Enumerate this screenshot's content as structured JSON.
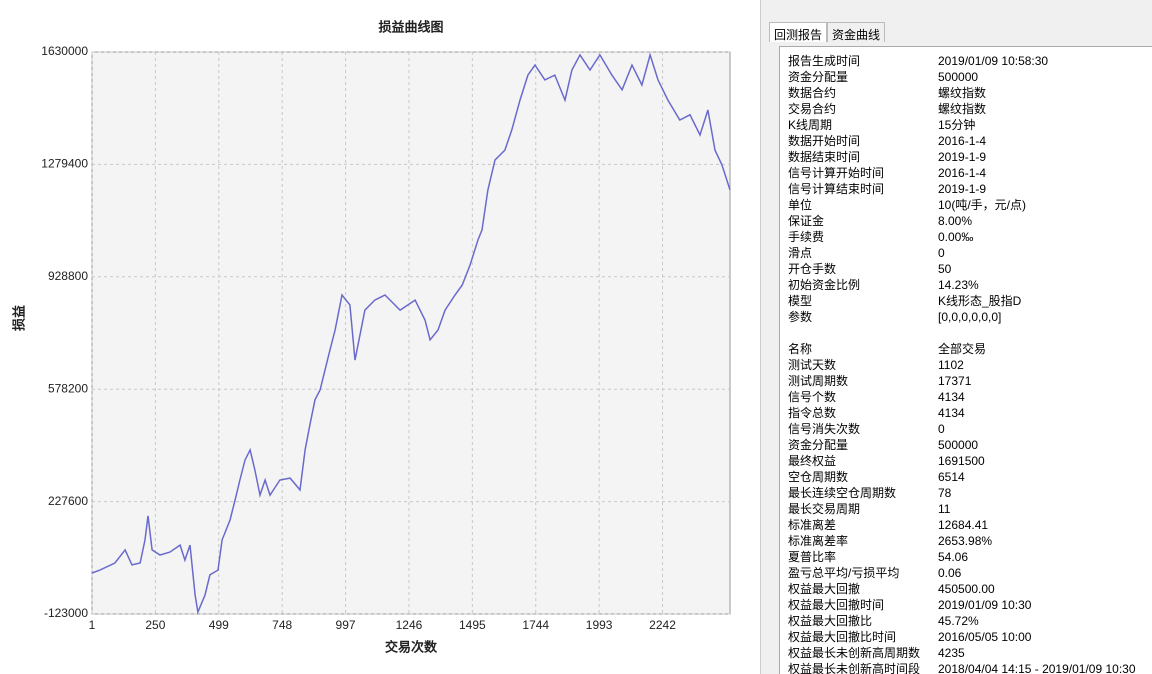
{
  "chart_data": {
    "type": "line",
    "title": "损益曲线图",
    "x_label": "交易次数",
    "y_label": "损益",
    "x": [
      1,
      32,
      91,
      131,
      158,
      190,
      209,
      221,
      237,
      268,
      307,
      347,
      366,
      386,
      406,
      417,
      445,
      464,
      496,
      512,
      543,
      563,
      582,
      602,
      622,
      641,
      661,
      681,
      700,
      739,
      779,
      818,
      838,
      857,
      877,
      897,
      936,
      956,
      983,
      1014,
      1034,
      1073,
      1112,
      1152,
      1211,
      1270,
      1309,
      1329,
      1360,
      1388,
      1427,
      1455,
      1486,
      1517,
      1533,
      1556,
      1584,
      1623,
      1650,
      1682,
      1713,
      1741,
      1780,
      1819,
      1859,
      1886,
      1918,
      1957,
      1996,
      2043,
      2083,
      2122,
      2161,
      2193,
      2224,
      2263,
      2310,
      2350,
      2389,
      2420,
      2448,
      2475,
      2507
    ],
    "series": [
      {
        "color": "#6a6acd",
        "values": [
          5000,
          14000,
          36000,
          77000,
          30000,
          36000,
          108000,
          183000,
          77000,
          61000,
          70000,
          92000,
          45000,
          92000,
          -64000,
          -117000,
          -64000,
          -1000,
          14000,
          108000,
          170000,
          233000,
          295000,
          357000,
          389000,
          326000,
          248000,
          295000,
          248000,
          295000,
          301000,
          264000,
          389000,
          467000,
          545000,
          576000,
          701000,
          763000,
          872000,
          841000,
          669000,
          825000,
          856000,
          872000,
          825000,
          856000,
          794000,
          732000,
          763000,
          825000,
          872000,
          903000,
          966000,
          1044000,
          1075000,
          1200000,
          1293000,
          1324000,
          1387000,
          1480000,
          1558000,
          1589000,
          1543000,
          1558000,
          1480000,
          1574000,
          1621000,
          1574000,
          1621000,
          1558000,
          1512000,
          1589000,
          1527000,
          1621000,
          1543000,
          1480000,
          1418000,
          1434000,
          1371000,
          1449000,
          1324000,
          1278000,
          1200000
        ]
      }
    ],
    "xlim": [
      1,
      2507
    ],
    "xticks": [
      1,
      250,
      499,
      748,
      997,
      1246,
      1495,
      1744,
      1993,
      2242
    ],
    "ylim": [
      -123000,
      1630000
    ],
    "yticks": [
      -123000,
      227600,
      578200,
      928800,
      1279400,
      1630000
    ],
    "grid": true
  },
  "tabs": [
    "回测报告",
    "资金曲线"
  ],
  "report": {
    "sections": [
      {
        "rows": [
          [
            "报告生成时间",
            "2019/01/09 10:58:30"
          ],
          [
            "资金分配量",
            "500000"
          ],
          [
            "数据合约",
            "螺纹指数"
          ],
          [
            "交易合约",
            "螺纹指数"
          ],
          [
            "K线周期",
            "15分钟"
          ],
          [
            "数据开始时间",
            "2016-1-4"
          ],
          [
            "数据结束时间",
            "2019-1-9"
          ],
          [
            "信号计算开始时间",
            "2016-1-4"
          ],
          [
            "信号计算结束时间",
            "2019-1-9"
          ],
          [
            "单位",
            "10(吨/手，元/点)"
          ],
          [
            "保证金",
            "8.00%"
          ],
          [
            "手续费",
            "0.00‰"
          ],
          [
            "滑点",
            "0"
          ],
          [
            "开仓手数",
            "50"
          ],
          [
            "初始资金比例",
            "14.23%"
          ],
          [
            "模型",
            "K线形态_股指D"
          ],
          [
            "参数",
            "[0,0,0,0,0,0]"
          ]
        ]
      },
      {
        "rows": [
          [
            "名称",
            "全部交易"
          ],
          [
            "测试天数",
            "1102"
          ],
          [
            "测试周期数",
            "17371"
          ],
          [
            "信号个数",
            "4134"
          ],
          [
            "指令总数",
            "4134"
          ],
          [
            "信号消失次数",
            "0"
          ],
          [
            "资金分配量",
            "500000"
          ],
          [
            "最终权益",
            "1691500"
          ],
          [
            "空仓周期数",
            "6514"
          ],
          [
            "最长连续空仓周期数",
            "78"
          ],
          [
            "最长交易周期",
            "11"
          ],
          [
            "标准离差",
            "12684.41"
          ],
          [
            "标准离差率",
            "2653.98%"
          ],
          [
            "夏普比率",
            "54.06"
          ],
          [
            "盈亏总平均/亏损平均",
            "0.06"
          ],
          [
            "权益最大回撤",
            "450500.00"
          ],
          [
            "权益最大回撤时间",
            "2019/01/09 10:30"
          ],
          [
            "权益最大回撤比",
            "45.72%"
          ],
          [
            "权益最大回撤比时间",
            "2016/05/05 10:00"
          ],
          [
            "权益最长未创新高周期数",
            "4235"
          ],
          [
            "权益最长未创新高时间段",
            "2018/04/04 14:15 - 2019/01/09 10:30"
          ]
        ]
      }
    ]
  }
}
